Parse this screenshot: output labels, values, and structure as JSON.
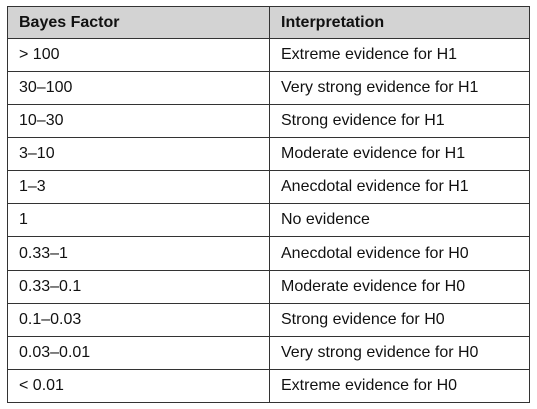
{
  "table": {
    "headers": [
      "Bayes Factor",
      "Interpretation"
    ],
    "rows": [
      [
        "> 100",
        "Extreme evidence for H1"
      ],
      [
        "30–100",
        "Very strong evidence for H1"
      ],
      [
        "10–30",
        "Strong evidence for H1"
      ],
      [
        "3–10",
        "Moderate evidence for H1"
      ],
      [
        "1–3",
        "Anecdotal evidence for H1"
      ],
      [
        "1",
        "No evidence"
      ],
      [
        "0.33–1",
        "Anecdotal evidence for H0"
      ],
      [
        "0.33–0.1",
        "Moderate evidence for H0"
      ],
      [
        "0.1–0.03",
        "Strong evidence for H0"
      ],
      [
        "0.03–0.01",
        "Very strong evidence for H0"
      ],
      [
        "< 0.01",
        "Extreme evidence for H0"
      ]
    ]
  }
}
